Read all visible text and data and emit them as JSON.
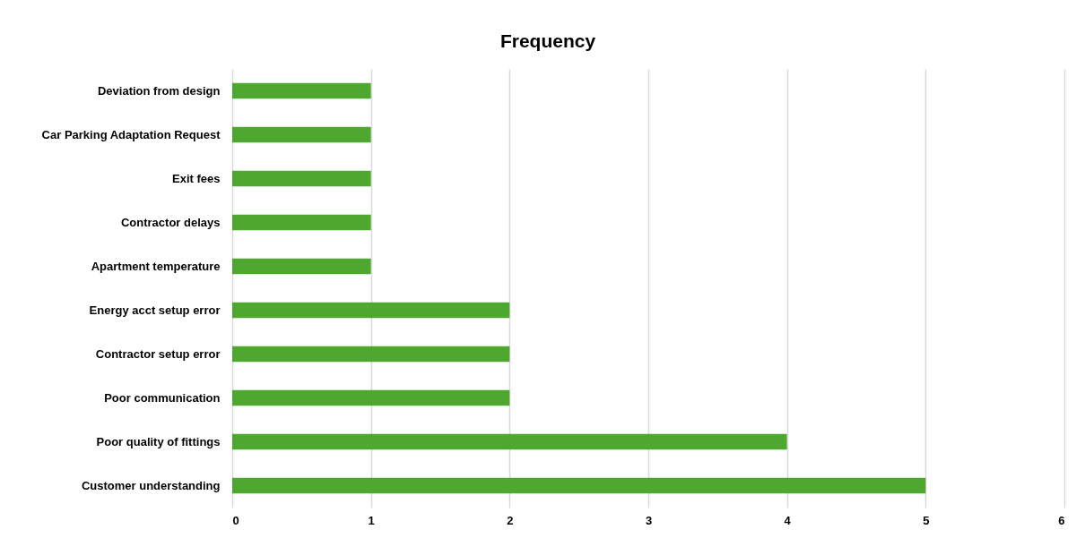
{
  "chart_data": {
    "type": "bar",
    "orientation": "horizontal",
    "title": "Frequency",
    "categories": [
      "Deviation from design",
      "Car Parking Adaptation Request",
      "Exit fees",
      "Contractor delays",
      "Apartment temperature",
      "Energy acct setup error",
      "Contractor setup error",
      "Poor communication",
      "Poor quality of fittings",
      "Customer understanding"
    ],
    "values": [
      1,
      1,
      1,
      1,
      1,
      2,
      2,
      2,
      4,
      5
    ],
    "color": "#4ea72e",
    "xlim": [
      0,
      6
    ],
    "xticks": [
      0,
      1,
      2,
      3,
      4,
      5,
      6
    ],
    "grid": "x"
  }
}
